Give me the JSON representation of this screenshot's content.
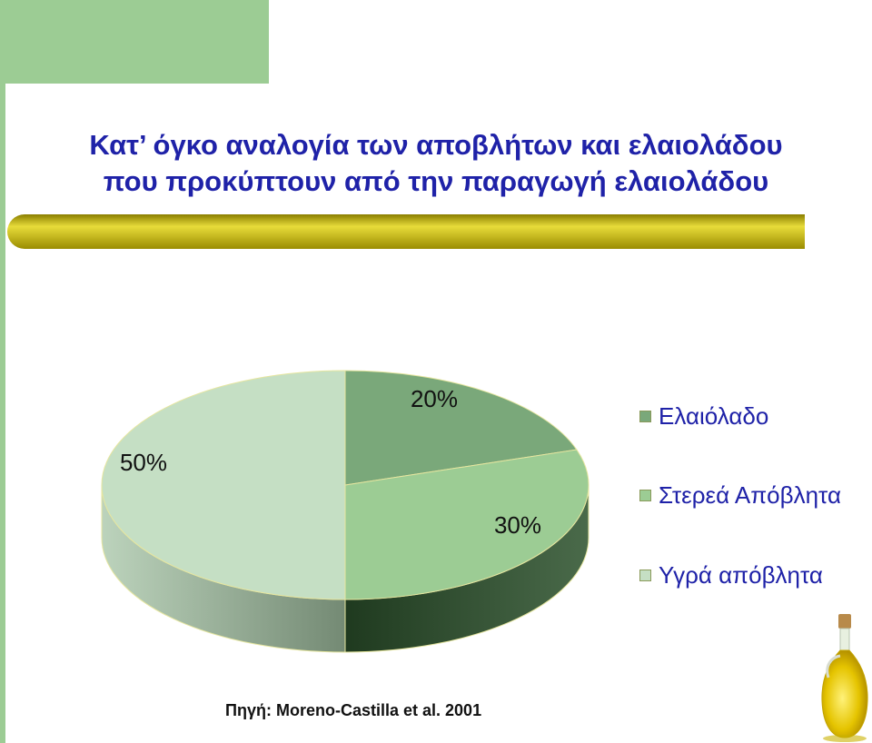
{
  "title": {
    "line1": "Κατ’ όγκο αναλογία των αποβλήτων και ελαιολάδου",
    "line2": "που προκύπτουν από την παραγωγή ελαιολάδου"
  },
  "chart_data": {
    "type": "pie",
    "categories": [
      "Ελαιόλαδο",
      "Στερεά Απόβλητα",
      "Υγρά απόβλητα"
    ],
    "values": [
      20,
      30,
      50
    ],
    "labels": [
      "20%",
      "30%",
      "50%"
    ],
    "colors": [
      "#7aa87a",
      "#9ccc94",
      "#c5dfc4"
    ],
    "legend_position": "right",
    "three_d": true
  },
  "legend": [
    {
      "label": "Ελαιόλαδο",
      "color": "#7aa87a"
    },
    {
      "label": "Στερεά Απόβλητα",
      "color": "#9ccc94"
    },
    {
      "label": "Υγρά απόβλητα",
      "color": "#c5dfc4"
    }
  ],
  "source": "Πηγή: Moreno-Castilla et al. 2001",
  "colors": {
    "accent_green": "#9ccc94",
    "title_blue": "#1f22a8",
    "bar_gold": "#c9b800"
  }
}
